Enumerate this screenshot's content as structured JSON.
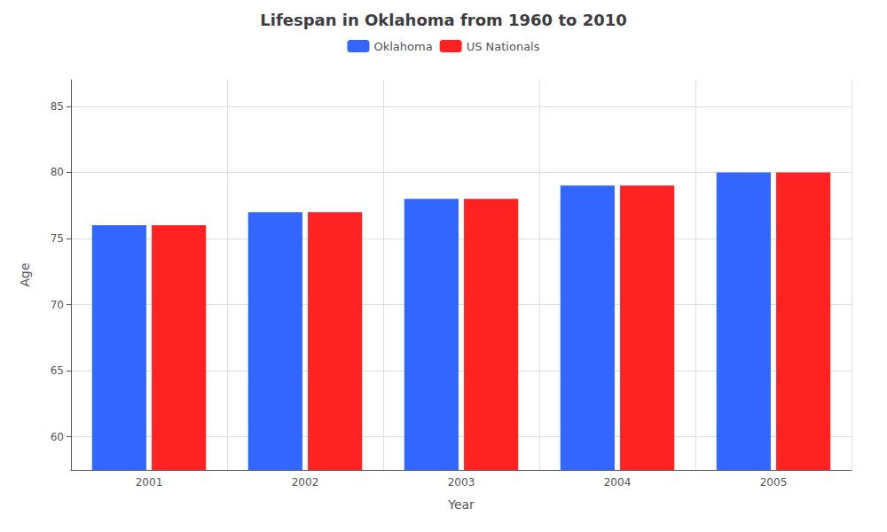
{
  "chart_data": {
    "type": "bar",
    "title": "Lifespan in Oklahoma from 1960 to 2010",
    "xlabel": "Year",
    "ylabel": "Age",
    "categories": [
      "2001",
      "2002",
      "2003",
      "2004",
      "2005"
    ],
    "series": [
      {
        "name": "Oklahoma",
        "color": "#3366ff",
        "values": [
          76,
          77,
          78,
          79,
          80
        ]
      },
      {
        "name": "US Nationals",
        "color": "#ff2222",
        "values": [
          76,
          77,
          78,
          79,
          80
        ]
      }
    ],
    "ylim": [
      57.5,
      87
    ],
    "yticks": [
      60,
      65,
      70,
      75,
      80,
      85
    ],
    "grid": true,
    "legend": "top"
  }
}
